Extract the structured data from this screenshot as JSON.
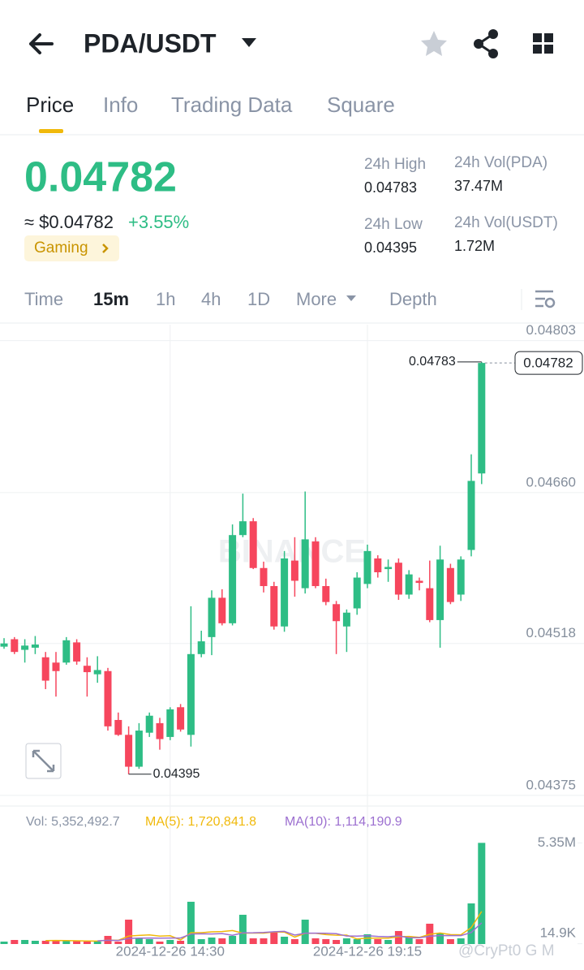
{
  "header": {
    "title": "PDA/USDT"
  },
  "tabs": [
    "Price",
    "Info",
    "Trading Data",
    "Square"
  ],
  "price": {
    "last": "0.04782",
    "usd": "≈ $0.04782",
    "change": "+3.55%",
    "tag": "Gaming"
  },
  "stats": [
    {
      "label": "24h High",
      "value": "0.04783"
    },
    {
      "label": "24h Vol(PDA)",
      "value": "37.47M"
    },
    {
      "label": "24h Low",
      "value": "0.04395"
    },
    {
      "label": "24h Vol(USDT)",
      "value": "1.72M"
    }
  ],
  "intervals": [
    "Time",
    "15m",
    "1h",
    "4h",
    "1D",
    "More",
    "Depth"
  ],
  "chart_data": {
    "type": "candlestick",
    "watermark": "BINANCE",
    "up_color": "#2ebd85",
    "down_color": "#f6465d",
    "open": [
      0.04515,
      0.04522,
      0.04512,
      0.04514,
      0.04505,
      0.045,
      0.045,
      0.04519,
      0.04497,
      0.04489,
      0.04492,
      0.04446,
      0.04432,
      0.04402,
      0.04434,
      0.04443,
      0.0443,
      0.04458,
      0.04432,
      0.04508,
      0.04524,
      0.04561,
      0.04537,
      0.0462,
      0.04633,
      0.04589,
      0.04572,
      0.04534,
      0.04596,
      0.0457,
      0.04614,
      0.04572,
      0.04555,
      0.04534,
      0.04551,
      0.04574,
      0.04598,
      0.04588,
      0.04594,
      0.04564,
      0.04577,
      0.0457,
      0.0454,
      0.04589,
      0.04564,
      0.04606,
      0.04678
    ],
    "high": [
      0.04523,
      0.04524,
      0.04522,
      0.04525,
      0.0451,
      0.0451,
      0.04524,
      0.04522,
      0.04505,
      0.04506,
      0.04495,
      0.04453,
      0.0444,
      0.04443,
      0.04453,
      0.04448,
      0.04458,
      0.04461,
      0.04553,
      0.0453,
      0.04568,
      0.04569,
      0.0463,
      0.04659,
      0.04636,
      0.04595,
      0.04576,
      0.04605,
      0.04618,
      0.04661,
      0.04618,
      0.04579,
      0.04558,
      0.0455,
      0.04585,
      0.04611,
      0.04601,
      0.04597,
      0.04598,
      0.04587,
      0.0458,
      0.04596,
      0.0461,
      0.04593,
      0.046,
      0.04696,
      0.04783
    ],
    "low": [
      0.04513,
      0.04508,
      0.045,
      0.04508,
      0.04475,
      0.04468,
      0.04498,
      0.04498,
      0.04468,
      0.04481,
      0.04436,
      0.04431,
      0.04395,
      0.044,
      0.0443,
      0.04418,
      0.04427,
      0.04435,
      0.04421,
      0.04505,
      0.04507,
      0.04535,
      0.04535,
      0.04618,
      0.04588,
      0.04566,
      0.04531,
      0.04529,
      0.04562,
      0.04565,
      0.0457,
      0.04554,
      0.04508,
      0.0451,
      0.04545,
      0.0457,
      0.0458,
      0.04576,
      0.04559,
      0.0456,
      0.04568,
      0.04538,
      0.04514,
      0.04555,
      0.04558,
      0.046,
      0.04668
    ],
    "close": [
      0.04518,
      0.0451,
      0.04516,
      0.04517,
      0.04483,
      0.04492,
      0.04521,
      0.04501,
      0.04491,
      0.04493,
      0.0444,
      0.04432,
      0.04402,
      0.04436,
      0.0445,
      0.04428,
      0.04456,
      0.04437,
      0.04508,
      0.0452,
      0.04561,
      0.04537,
      0.0462,
      0.04633,
      0.04589,
      0.04572,
      0.04534,
      0.04598,
      0.04577,
      0.04616,
      0.04572,
      0.04557,
      0.04539,
      0.04547,
      0.0458,
      0.04605,
      0.04585,
      0.0459,
      0.04564,
      0.04583,
      0.04575,
      0.0454,
      0.04597,
      0.04557,
      0.04597,
      0.04671,
      0.04782
    ],
    "ylim": [
      0.04365,
      0.04818
    ],
    "yticks": [
      0.04803,
      {
        "value": 0.0466,
        "label": "0.04660"
      },
      0.04518,
      0.04375
    ],
    "xticks": [
      {
        "value": 16,
        "label": "2024-12-26 14:30"
      },
      {
        "value": 35,
        "label": "2024-12-26 19:15"
      }
    ],
    "high_label": "0.04783",
    "low_label": "0.04395",
    "last_label": "0.04782",
    "volume": [
      129000,
      215000,
      215000,
      172000,
      172000,
      172000,
      172000,
      172000,
      129000,
      129000,
      430000,
      129000,
      1290000,
      301000,
      258000,
      129000,
      215000,
      172000,
      2236000,
      258000,
      344000,
      301000,
      430000,
      1548000,
      301000,
      301000,
      602000,
      387000,
      258000,
      1290000,
      301000,
      258000,
      215000,
      301000,
      258000,
      516000,
      258000,
      215000,
      688000,
      344000,
      258000,
      1075000,
      559000,
      258000,
      301000,
      2150000,
      5352492.7
    ],
    "vol_ylim": [
      0,
      7000000
    ],
    "vol_yticks": [
      {
        "value": 5350000,
        "label": "5.35M"
      },
      {
        "value": 14900,
        "label": "14.9K"
      }
    ],
    "vol_text": "Vol: 5,352,492.7",
    "ma5_text": "MA(5): 1,720,841.8",
    "ma10_text": "MA(10): 1,114,190.9",
    "ma5_color": "#f0b90b",
    "ma10_color": "#9c6fd0"
  },
  "watermark": "@CryPt0 G M"
}
